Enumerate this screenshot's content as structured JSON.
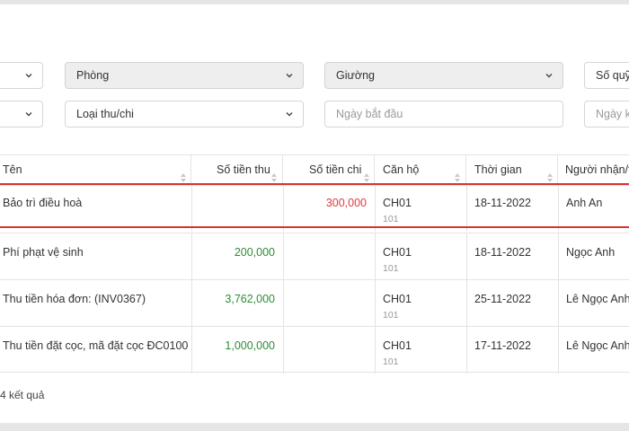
{
  "filters": {
    "row1": {
      "phong": "Phòng",
      "giuong": "Giường",
      "so_quy": "Số quỹ"
    },
    "row2": {
      "loai_thu_chi": "Loại thu/chi",
      "ngay_bat_dau_placeholder": "Ngày bắt đầu",
      "ngay_ket_thuc_placeholder": "Ngày kết"
    }
  },
  "table": {
    "headers": [
      "Tên",
      "Số tiền thu",
      "Số tiền chi",
      "Căn hộ",
      "Thời gian",
      "Người nhận/t"
    ],
    "rows": [
      {
        "ten": "Bảo trì điều hoà",
        "thu": "",
        "chi": "300,000",
        "can_ho": "CH01",
        "can_ho_sub": "101",
        "thoi_gian": "18-11-2022",
        "nguoi": "Anh An"
      },
      {
        "ten": "Phí phạt vệ sinh",
        "thu": "200,000",
        "chi": "",
        "can_ho": "CH01",
        "can_ho_sub": "101",
        "thoi_gian": "18-11-2022",
        "nguoi": "Ngọc Anh"
      },
      {
        "ten": "Thu tiền hóa đơn: (INV0367)",
        "thu": "3,762,000",
        "chi": "",
        "can_ho": "CH01",
        "can_ho_sub": "101",
        "thoi_gian": "25-11-2022",
        "nguoi": "Lê Ngọc Anh"
      },
      {
        "ten": "Thu tiền đặt cọc, mã đặt cọc ĐC0100",
        "thu": "1,000,000",
        "chi": "",
        "can_ho": "CH01",
        "can_ho_sub": "101",
        "thoi_gian": "17-11-2022",
        "nguoi": "Lê Ngọc Anh"
      }
    ]
  },
  "result_count": "4 kết quả",
  "colors": {
    "income": "#2e8b36",
    "expense": "#e0393e",
    "highlight": "#d9342b"
  }
}
